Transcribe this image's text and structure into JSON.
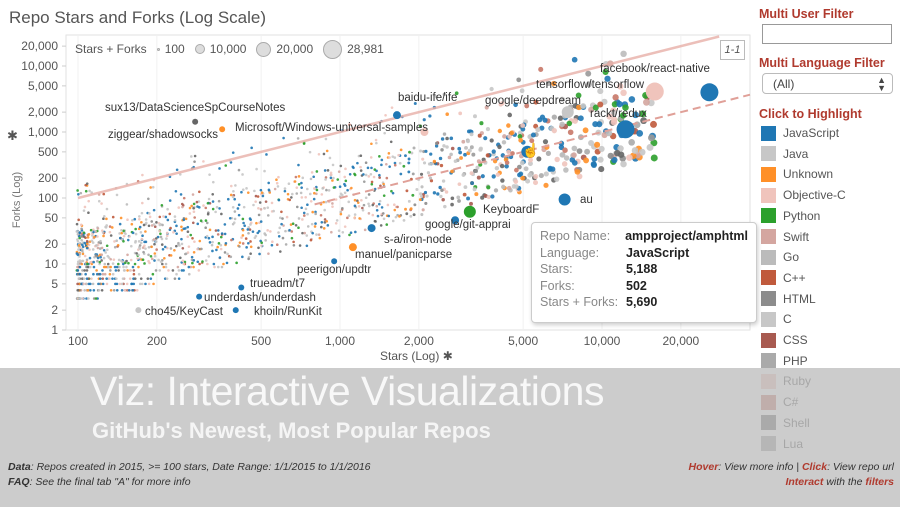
{
  "title": "Repo Stars and Forks (Log Scale)",
  "ref_button": "1-1",
  "filters": {
    "user_label": "Multi User Filter",
    "user_value": "",
    "language_label": "Multi Language Filter",
    "language_value": "(All)"
  },
  "highlight": {
    "title": "Click to Highlight",
    "items": [
      {
        "label": "JavaScript",
        "color": "#1f77b4"
      },
      {
        "label": "Java",
        "color": "#c7c7c7"
      },
      {
        "label": "Unknown",
        "color": "#ff9028"
      },
      {
        "label": "Objective-C",
        "color": "#f0c4bc"
      },
      {
        "label": "Python",
        "color": "#2ca02c"
      },
      {
        "label": "Swift",
        "color": "#d4a6a0"
      },
      {
        "label": "Go",
        "color": "#bbbbbb"
      },
      {
        "label": "C++",
        "color": "#c05a3c"
      },
      {
        "label": "HTML",
        "color": "#8c8c8c"
      },
      {
        "label": "C",
        "color": "#c7c7c7"
      },
      {
        "label": "CSS",
        "color": "#a85a50"
      },
      {
        "label": "PHP",
        "color": "#aaaaaa"
      },
      {
        "label": "Ruby",
        "color": "#f0c4bc"
      },
      {
        "label": "C#",
        "color": "#c87868"
      },
      {
        "label": "Shell",
        "color": "#666666"
      },
      {
        "label": "Lua",
        "color": "#999999"
      }
    ]
  },
  "size_legend": {
    "title": "Stars + Forks",
    "items": [
      "100",
      "10,000",
      "20,000",
      "28,981"
    ]
  },
  "tooltip": {
    "rows": [
      {
        "k": "Repo Name:",
        "v": "ampproject/amphtml"
      },
      {
        "k": "Language:",
        "v": "JavaScript"
      },
      {
        "k": "Stars:",
        "v": "5,188"
      },
      {
        "k": "Forks:",
        "v": "502"
      },
      {
        "k": "Stars + Forks:",
        "v": "5,690"
      }
    ]
  },
  "overlay": {
    "line1": "Viz: Interactive Visualizations",
    "line2": "GitHub's Newest, Most Popular Repos"
  },
  "footer": {
    "data_label": "Data",
    "data_text": ": Repos created in 2015, >= 100 stars, Date Range: 1/1/2015 to 1/1/2016",
    "faq_label": "FAQ",
    "faq_text": ": See the final tab \"A\" for more info",
    "hover": "Hover",
    "hover_text": ": View more info | ",
    "click": "Click",
    "click_text": ": View repo url",
    "interact": "Interact",
    "interact_text": " with the ",
    "filters": "filters"
  },
  "chart_data": {
    "type": "scatter",
    "title": "Repo Stars and Forks (Log Scale)",
    "xlabel": "Stars (Log)",
    "ylabel": "Forks (Log)",
    "xscale": "log",
    "yscale": "log",
    "xlim": [
      70,
      30000
    ],
    "ylim": [
      1,
      30000
    ],
    "xticks": [
      "100",
      "200",
      "500",
      "1,000",
      "2,000",
      "5,000",
      "10,000",
      "20,000"
    ],
    "xtick_values": [
      100,
      200,
      500,
      1000,
      2000,
      5000,
      10000,
      20000
    ],
    "yticks": [
      "1",
      "2",
      "5",
      "10",
      "20",
      "50",
      "100",
      "200",
      "500",
      "1,000",
      "2,000",
      "5,000",
      "10,000",
      "20,000"
    ],
    "ytick_values": [
      1,
      2,
      5,
      10,
      20,
      50,
      100,
      200,
      500,
      1000,
      2000,
      5000,
      10000,
      20000
    ],
    "reference_lines": [
      {
        "label": "1-1",
        "ratio": 1,
        "style": "solid"
      },
      {
        "ratio": 0.1,
        "style": "dashed"
      }
    ],
    "labeled_points": [
      {
        "name": "sux13/DataScienceSpCourseNotes",
        "stars": 280,
        "forks": 1430,
        "lang": "Shell"
      },
      {
        "name": "ziggear/shadowsocks",
        "stars": 355,
        "forks": 1100,
        "lang": "Unknown"
      },
      {
        "name": "Microsoft/Windows-universal-samples",
        "stars": 2100,
        "forks": 1000,
        "lang": "Objective-C"
      },
      {
        "name": "baidu-ife/ife",
        "stars": 1650,
        "forks": 1800,
        "lang": "JavaScript"
      },
      {
        "name": "google/deepdream",
        "stars": 7400,
        "forks": 2000,
        "lang": "Java"
      },
      {
        "name": "tensorflow/tensorflow",
        "stars": 15900,
        "forks": 4100,
        "lang": "Objective-C"
      },
      {
        "name": "facebook/react-native",
        "stars": 25700,
        "forks": 4000,
        "lang": "JavaScript"
      },
      {
        "name": "rackt/redux",
        "stars": 12300,
        "forks": 1100,
        "lang": "JavaScript"
      },
      {
        "name": "au",
        "stars": 7200,
        "forks": 95,
        "lang": "JavaScript"
      },
      {
        "name": "KeyboardF",
        "stars": 3130,
        "forks": 62,
        "lang": "Python"
      },
      {
        "name": "google/git-apprai",
        "stars": 2750,
        "forks": 46,
        "lang": "JavaScript"
      },
      {
        "name": "s-a/iron-node",
        "stars": 1320,
        "forks": 35,
        "lang": "JavaScript"
      },
      {
        "name": "manuel/panicparse",
        "stars": 1120,
        "forks": 18,
        "lang": "Unknown"
      },
      {
        "name": "peerigon/updtr",
        "stars": 950,
        "forks": 11,
        "lang": "JavaScript"
      },
      {
        "name": "trueadm/t7",
        "stars": 420,
        "forks": 4.4,
        "lang": "JavaScript"
      },
      {
        "name": "underdash/underdash",
        "stars": 290,
        "forks": 3.2,
        "lang": "JavaScript"
      },
      {
        "name": "cho45/KeyCast",
        "stars": 170,
        "forks": 2,
        "lang": "Java"
      },
      {
        "name": "khoiln/RunKit",
        "stars": 400,
        "forks": 2,
        "lang": "JavaScript"
      },
      {
        "name": "ampproject/amphtml",
        "stars": 5188,
        "forks": 502,
        "lang": "JavaScript"
      }
    ]
  }
}
